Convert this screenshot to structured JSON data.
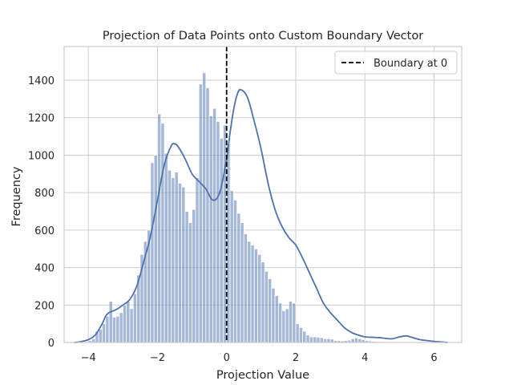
{
  "chart_data": {
    "type": "bar",
    "title": "Projection of Data Points onto Custom Boundary Vector",
    "xlabel": "Projection Value",
    "ylabel": "Frequency",
    "xlim": [
      -4.7,
      6.8
    ],
    "ylim": [
      0,
      1580
    ],
    "xticks": [
      -4,
      -2,
      0,
      2,
      4,
      6
    ],
    "yticks": [
      0,
      200,
      400,
      600,
      800,
      1000,
      1200,
      1400
    ],
    "grid": true,
    "legend": {
      "placement": "top-right",
      "entries": [
        "Boundary at 0"
      ]
    },
    "boundary_x": 0,
    "histogram": {
      "bin_start": -4.0,
      "bin_width": 0.1,
      "counts": [
        10,
        20,
        60,
        70,
        100,
        140,
        220,
        135,
        140,
        160,
        200,
        220,
        180,
        260,
        360,
        470,
        540,
        600,
        960,
        1000,
        1220,
        1170,
        1010,
        920,
        880,
        910,
        850,
        830,
        700,
        640,
        710,
        880,
        1380,
        1440,
        1360,
        1210,
        1250,
        1180,
        1090,
        1160,
        1060,
        810,
        760,
        690,
        640,
        580,
        540,
        520,
        500,
        470,
        430,
        380,
        340,
        290,
        250,
        210,
        170,
        180,
        220,
        210,
        100,
        80,
        60,
        40,
        30,
        30,
        28,
        26,
        20,
        20,
        18,
        10,
        10,
        8,
        10,
        12,
        20,
        24,
        20,
        15,
        10,
        8,
        6,
        5,
        4,
        3
      ]
    },
    "kde": {
      "x": [
        -4.4,
        -4.2,
        -4.0,
        -3.8,
        -3.6,
        -3.5,
        -3.4,
        -3.2,
        -3.0,
        -2.8,
        -2.6,
        -2.4,
        -2.2,
        -2.0,
        -1.8,
        -1.6,
        -1.5,
        -1.4,
        -1.2,
        -1.0,
        -0.8,
        -0.6,
        -0.4,
        -0.2,
        0.0,
        0.1,
        0.2,
        0.3,
        0.4,
        0.6,
        0.8,
        1.0,
        1.2,
        1.4,
        1.6,
        1.8,
        2.0,
        2.2,
        2.4,
        2.6,
        2.8,
        3.0,
        3.2,
        3.4,
        3.6,
        3.8,
        4.0,
        4.2,
        4.4,
        4.6,
        4.8,
        5.0,
        5.2,
        5.4,
        5.6,
        5.8,
        6.0,
        6.2,
        6.4
      ],
      "y": [
        0,
        5,
        15,
        40,
        100,
        140,
        160,
        175,
        200,
        230,
        300,
        430,
        570,
        760,
        950,
        1050,
        1060,
        1045,
        980,
        900,
        860,
        820,
        760,
        800,
        980,
        1120,
        1240,
        1320,
        1350,
        1310,
        1180,
        1030,
        850,
        710,
        620,
        560,
        520,
        450,
        370,
        290,
        210,
        160,
        120,
        80,
        55,
        40,
        30,
        28,
        26,
        22,
        20,
        30,
        35,
        25,
        15,
        10,
        6,
        3,
        0
      ]
    }
  }
}
